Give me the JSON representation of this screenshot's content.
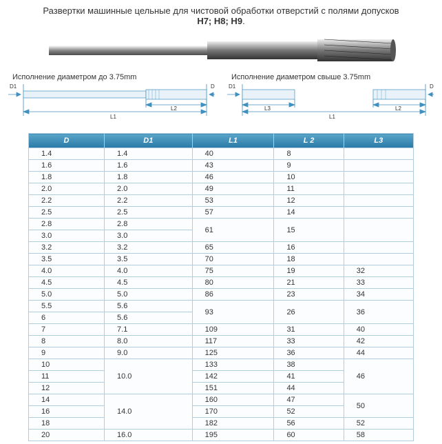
{
  "title_line1": "Развертки машинные цельные для чистовой обработки отверстий с полями допусков",
  "title_line2": "H7; H8; H9",
  "caption_left": "Исполнение диаметром до 3.75mm",
  "caption_right": "Исполнение диаметром свыше  3.75mm",
  "labels": {
    "D": "D",
    "D1": "D1",
    "L1": "L1",
    "L2": "L2",
    "L3": "L3"
  },
  "table": {
    "headers": [
      "D",
      "D1",
      "L1",
      "L 2",
      "L3"
    ],
    "rows": [
      {
        "d": "1.4",
        "d1": "1.4",
        "l1": "40",
        "l2": "8",
        "l3": ""
      },
      {
        "d": "1.6",
        "d1": "1.6",
        "l1": "43",
        "l2": "9",
        "l3": ""
      },
      {
        "d": "1.8",
        "d1": "1.8",
        "l1": "46",
        "l2": "10",
        "l3": ""
      },
      {
        "d": "2.0",
        "d1": "2.0",
        "l1": "49",
        "l2": "11",
        "l3": ""
      },
      {
        "d": "2.2",
        "d1": "2.2",
        "l1": "53",
        "l2": "12",
        "l3": ""
      },
      {
        "d": "2.5",
        "d1": "2.5",
        "l1": "57",
        "l2": "14",
        "l3": ""
      },
      {
        "d": "2.8",
        "d1": "2.8",
        "l1_span": 2,
        "l1": "61",
        "l2_span": 2,
        "l2": "15",
        "l3": "",
        "l3_span": 2
      },
      {
        "d": "3.0",
        "d1": "3.0"
      },
      {
        "d": "3.2",
        "d1": "3.2",
        "l1": "65",
        "l2": "16",
        "l3": ""
      },
      {
        "d": "3.5",
        "d1": "3.5",
        "l1": "70",
        "l2": "18",
        "l3": ""
      },
      {
        "d": "4.0",
        "d1": "4.0",
        "l1": "75",
        "l2": "19",
        "l3": "32"
      },
      {
        "d": "4.5",
        "d1": "4.5",
        "l1": "80",
        "l2": "21",
        "l3": "33"
      },
      {
        "d": "5.0",
        "d1": "5.0",
        "l1": "86",
        "l2": "23",
        "l3": "34"
      },
      {
        "d": "5.5",
        "d1": "5.6",
        "l1_span": 2,
        "l1": "93",
        "l2_span": 2,
        "l2": "26",
        "l3_span": 2,
        "l3": "36"
      },
      {
        "d": "6",
        "d1": "5.6"
      },
      {
        "d": "7",
        "d1": "7.1",
        "l1": "109",
        "l2": "31",
        "l3": "40"
      },
      {
        "d": "8",
        "d1": "8.0",
        "l1": "117",
        "l2": "33",
        "l3": "42"
      },
      {
        "d": "9",
        "d1": "9.0",
        "l1": "125",
        "l2": "36",
        "l3": "44"
      },
      {
        "d": "10",
        "d1_span": 3,
        "d1": "10.0",
        "l1": "133",
        "l2": "38",
        "l3_span": 3,
        "l3": "46"
      },
      {
        "d": "11",
        "l1": "142",
        "l2": "41"
      },
      {
        "d": "12",
        "l1": "151",
        "l2": "44"
      },
      {
        "d": "14",
        "d1_span": 3,
        "d1": "14.0",
        "l1": "160",
        "l2": "47",
        "l3_span": 2,
        "l3": "50"
      },
      {
        "d": "16",
        "l1": "170",
        "l2": "52"
      },
      {
        "d": "18",
        "l1": "182",
        "l2": "56",
        "l3": "52"
      },
      {
        "d": "20",
        "d1": "16.0",
        "l1": "195",
        "l2": "60",
        "l3": "58"
      }
    ]
  },
  "colors": {
    "header_grad_top": "#5aa4c8",
    "header_grad_bot": "#2a7aa8",
    "border": "#b0cde0",
    "row_bg": "#fbfdfe",
    "tool_grey": "#8a8a8a",
    "tool_dark": "#4a4a4a"
  }
}
